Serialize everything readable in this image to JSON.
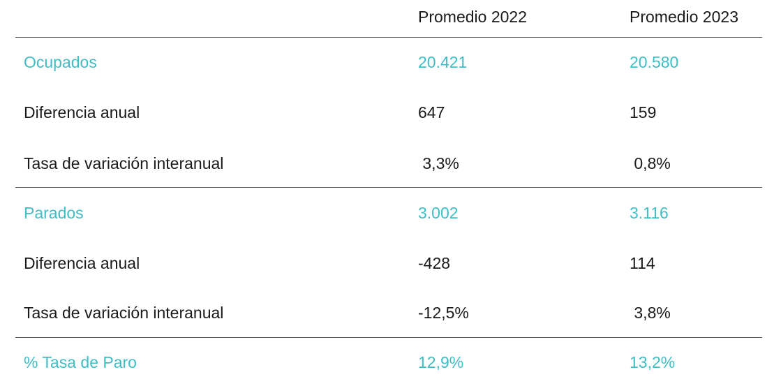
{
  "table": {
    "headers": [
      "",
      "Promedio 2022",
      "Promedio 2023"
    ],
    "rows": [
      {
        "label": "Ocupados",
        "v2022": "20.421",
        "v2023": "20.580"
      },
      {
        "label": "Diferencia anual",
        "v2022": "647",
        "v2023": "159"
      },
      {
        "label": "Tasa de variación interanual",
        "v2022": " 3,3%",
        "v2023": " 0,8%"
      },
      {
        "label": "Parados",
        "v2022": "3.002",
        "v2023": "3.116"
      },
      {
        "label": "Diferencia anual",
        "v2022": "-428",
        "v2023": "114"
      },
      {
        "label": "Tasa de variación interanual",
        "v2022": "-12,5%",
        "v2023": " 3,8%"
      },
      {
        "label": "% Tasa de Paro",
        "v2022": "12,9%",
        "v2023": "13,2%"
      }
    ]
  },
  "colors": {
    "accent": "#3fbdc4",
    "text": "#1a1a1a",
    "rule": "#5a5a5a"
  }
}
